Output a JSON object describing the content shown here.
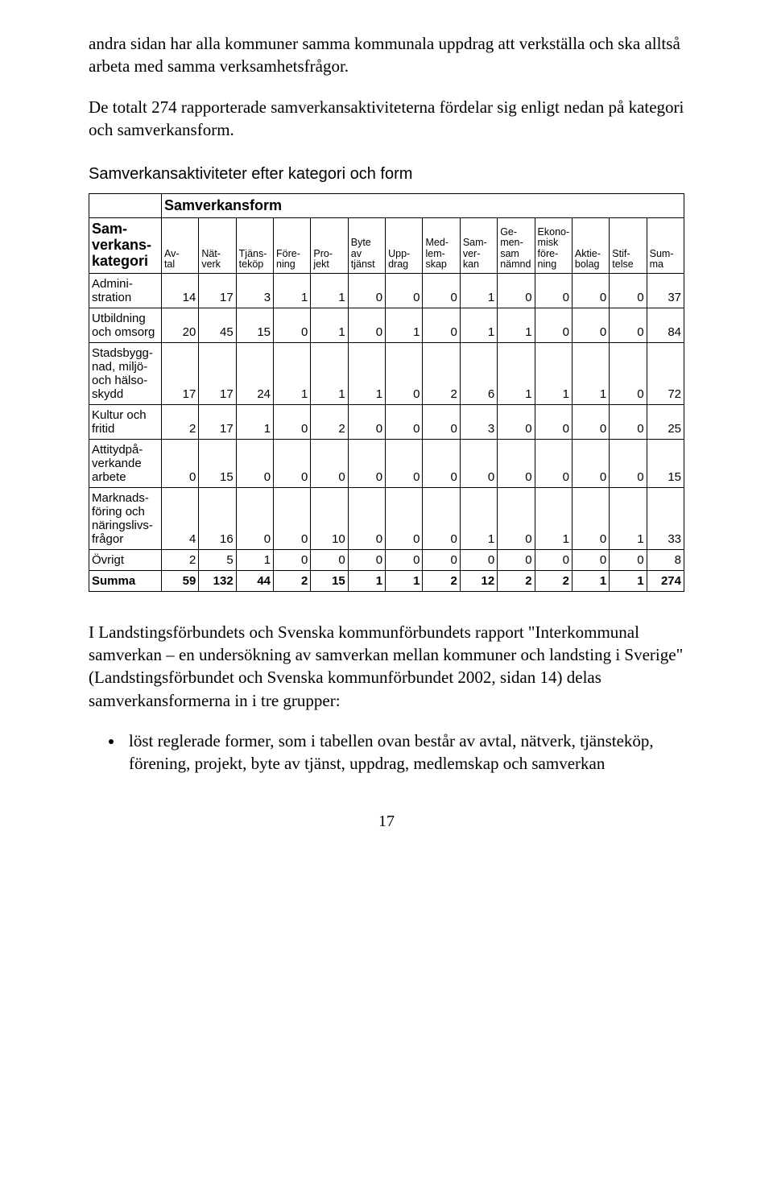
{
  "paragraphs": {
    "p1": "andra sidan har alla kommuner samma kommunala uppdrag att verkställa och ska alltså arbeta med samma verksamhetsfrågor.",
    "p2": "De totalt 274 rapporterade samverkansaktiviteterna fördelar sig enligt nedan på kategori och samverkansform.",
    "table_title": "Samverkansaktiviteter efter kategori och form",
    "p3": "I Landstingsförbundets och Svenska kommunförbundets rapport \"Interkommunal samverkan – en undersökning av samverkan mellan kommuner och landsting i Sverige\" (Landstingsförbundet och Svenska kommunförbundet 2002, sidan 14) delas samverkansformerna in i tre grupper:",
    "bullet1": "löst reglerade former, som i tabellen ovan består av avtal, nätverk, tjänsteköp, förening, projekt, byte av tjänst, uppdrag, medlemskap och samverkan"
  },
  "table": {
    "top_header": "Samverkansform",
    "row_header_label": "Sam-\nverkans-\nkategori",
    "columns": [
      "Av-\ntal",
      "Nät-\nverk",
      "Tjäns-\nteköp",
      "Före-\nning",
      "Pro-\njekt",
      "Byte\nav\ntjänst",
      "Upp-\ndrag",
      "Med-\nlem-\nskap",
      "Sam-\nver-\nkan",
      "Ge-\nmen-\nsam\nnämnd",
      "Ekono-\nmisk\nföre-\nning",
      "Aktie-\nbolag",
      "Stif-\ntelse",
      "Sum-\nma"
    ],
    "rows": [
      {
        "label": "Admini-\nstration",
        "vals": [
          14,
          17,
          3,
          1,
          1,
          0,
          0,
          0,
          1,
          0,
          0,
          0,
          0,
          37
        ]
      },
      {
        "label": "Utbildning\noch omsorg",
        "vals": [
          20,
          45,
          15,
          0,
          1,
          0,
          1,
          0,
          1,
          1,
          0,
          0,
          0,
          84
        ]
      },
      {
        "label": "Stadsbygg-\nnad, miljö-\noch hälso-\nskydd",
        "vals": [
          17,
          17,
          24,
          1,
          1,
          1,
          0,
          2,
          6,
          1,
          1,
          1,
          0,
          72
        ]
      },
      {
        "label": "Kultur och\nfritid",
        "vals": [
          2,
          17,
          1,
          0,
          2,
          0,
          0,
          0,
          3,
          0,
          0,
          0,
          0,
          25
        ]
      },
      {
        "label": "Attitydpå-\nverkande\narbete",
        "vals": [
          0,
          15,
          0,
          0,
          0,
          0,
          0,
          0,
          0,
          0,
          0,
          0,
          0,
          15
        ]
      },
      {
        "label": "Marknads-\nföring och\nnäringslivs-\nfrågor",
        "vals": [
          4,
          16,
          0,
          0,
          10,
          0,
          0,
          0,
          1,
          0,
          1,
          0,
          1,
          33
        ]
      },
      {
        "label": "Övrigt",
        "vals": [
          2,
          5,
          1,
          0,
          0,
          0,
          0,
          0,
          0,
          0,
          0,
          0,
          0,
          8
        ]
      }
    ],
    "sum_row": {
      "label": "Summa",
      "vals": [
        59,
        132,
        44,
        2,
        15,
        1,
        1,
        2,
        12,
        2,
        2,
        1,
        1,
        274
      ]
    }
  },
  "page_number": "17"
}
